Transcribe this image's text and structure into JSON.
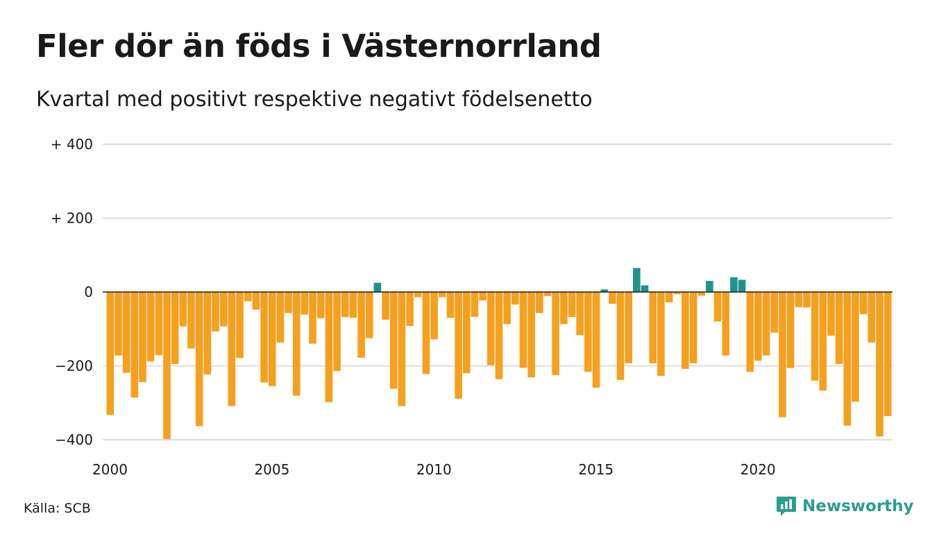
{
  "title": "Fler dör än föds i Västernorrland",
  "subtitle": "Kvartal med positivt respektive negativt födelsenetto",
  "source": "Källa: SCB",
  "brand": "Newsworthy",
  "colors": {
    "positive": "#1e9487",
    "negative": "#f5a01f",
    "brand": "#2a9d8f",
    "grid": "#dddddd"
  },
  "chart_data": {
    "type": "bar",
    "title": "Fler dör än föds i Västernorrland",
    "subtitle": "Kvartal med positivt respektive negativt födelsenetto",
    "xlabel": "",
    "ylabel": "",
    "ylim": [
      -400,
      400
    ],
    "y_ticks": [
      {
        "value": 400,
        "label": "+ 400"
      },
      {
        "value": 200,
        "label": "+ 200"
      },
      {
        "value": 0,
        "label": "0"
      },
      {
        "value": -200,
        "label": "−200"
      },
      {
        "value": -400,
        "label": "−400"
      }
    ],
    "x_ticks": [
      {
        "value": 2000,
        "label": "2000"
      },
      {
        "value": 2005,
        "label": "2005"
      },
      {
        "value": 2010,
        "label": "2010"
      },
      {
        "value": 2015,
        "label": "2015"
      },
      {
        "value": 2020,
        "label": "2020"
      }
    ],
    "grid": true,
    "start_year": 2000,
    "periods_per_year": 4,
    "values": [
      -333,
      -172,
      -219,
      -286,
      -244,
      -188,
      -171,
      -398,
      -195,
      -93,
      -153,
      -363,
      -223,
      -107,
      -93,
      -309,
      -179,
      -25,
      -48,
      -245,
      -255,
      -137,
      -57,
      -281,
      -61,
      -140,
      -71,
      -298,
      -214,
      -68,
      -70,
      -178,
      -125,
      25,
      -75,
      -262,
      -309,
      -92,
      -14,
      -222,
      -128,
      -14,
      -70,
      -289,
      -220,
      -67,
      -23,
      -198,
      -236,
      -87,
      -34,
      -205,
      -231,
      -57,
      -11,
      -225,
      -87,
      -68,
      -117,
      -216,
      -259,
      7,
      -32,
      -238,
      -193,
      65,
      18,
      -193,
      -227,
      -28,
      -6,
      -208,
      -193,
      -10,
      30,
      -80,
      -172,
      40,
      33,
      -216,
      -186,
      -172,
      -110,
      -339,
      -206,
      -41,
      -42,
      -240,
      -267,
      -118,
      -195,
      -362,
      -297,
      -60,
      -137,
      -391,
      -336
    ]
  }
}
